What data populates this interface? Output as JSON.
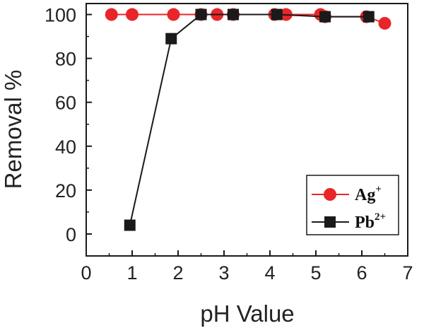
{
  "chart_data": {
    "type": "line",
    "title": "",
    "xlabel": "pH Value",
    "ylabel": "Removal %",
    "xlim": [
      0,
      7
    ],
    "ylim": [
      -10,
      105
    ],
    "xticks": [
      0,
      1,
      2,
      3,
      4,
      5,
      6,
      7
    ],
    "yticks": [
      0,
      20,
      40,
      60,
      80,
      100
    ],
    "x_tick_labels": [
      "0",
      "1",
      "2",
      "3",
      "4",
      "5",
      "6",
      "7"
    ],
    "y_tick_labels": [
      "0",
      "20",
      "40",
      "60",
      "80",
      "100"
    ],
    "grid": false,
    "legend_position": "bottom-right",
    "series": [
      {
        "name": "Ag+",
        "label_base": "Ag",
        "label_sup": "+",
        "color": "#e8262a",
        "marker": "circle",
        "x": [
          0.55,
          1.0,
          1.9,
          2.5,
          2.85,
          3.2,
          4.1,
          4.35,
          5.1,
          5.2,
          6.1,
          6.5
        ],
        "y": [
          100,
          100,
          100,
          100,
          100,
          100,
          100,
          100,
          100,
          99,
          99,
          96
        ]
      },
      {
        "name": "Pb2+",
        "label_base": "Pb",
        "label_sup": "2+",
        "color": "#1a1a1a",
        "marker": "square",
        "x": [
          0.95,
          1.85,
          2.5,
          3.2,
          4.15,
          5.2,
          6.15
        ],
        "y": [
          4,
          89,
          100,
          100,
          100,
          99,
          99
        ]
      }
    ]
  }
}
